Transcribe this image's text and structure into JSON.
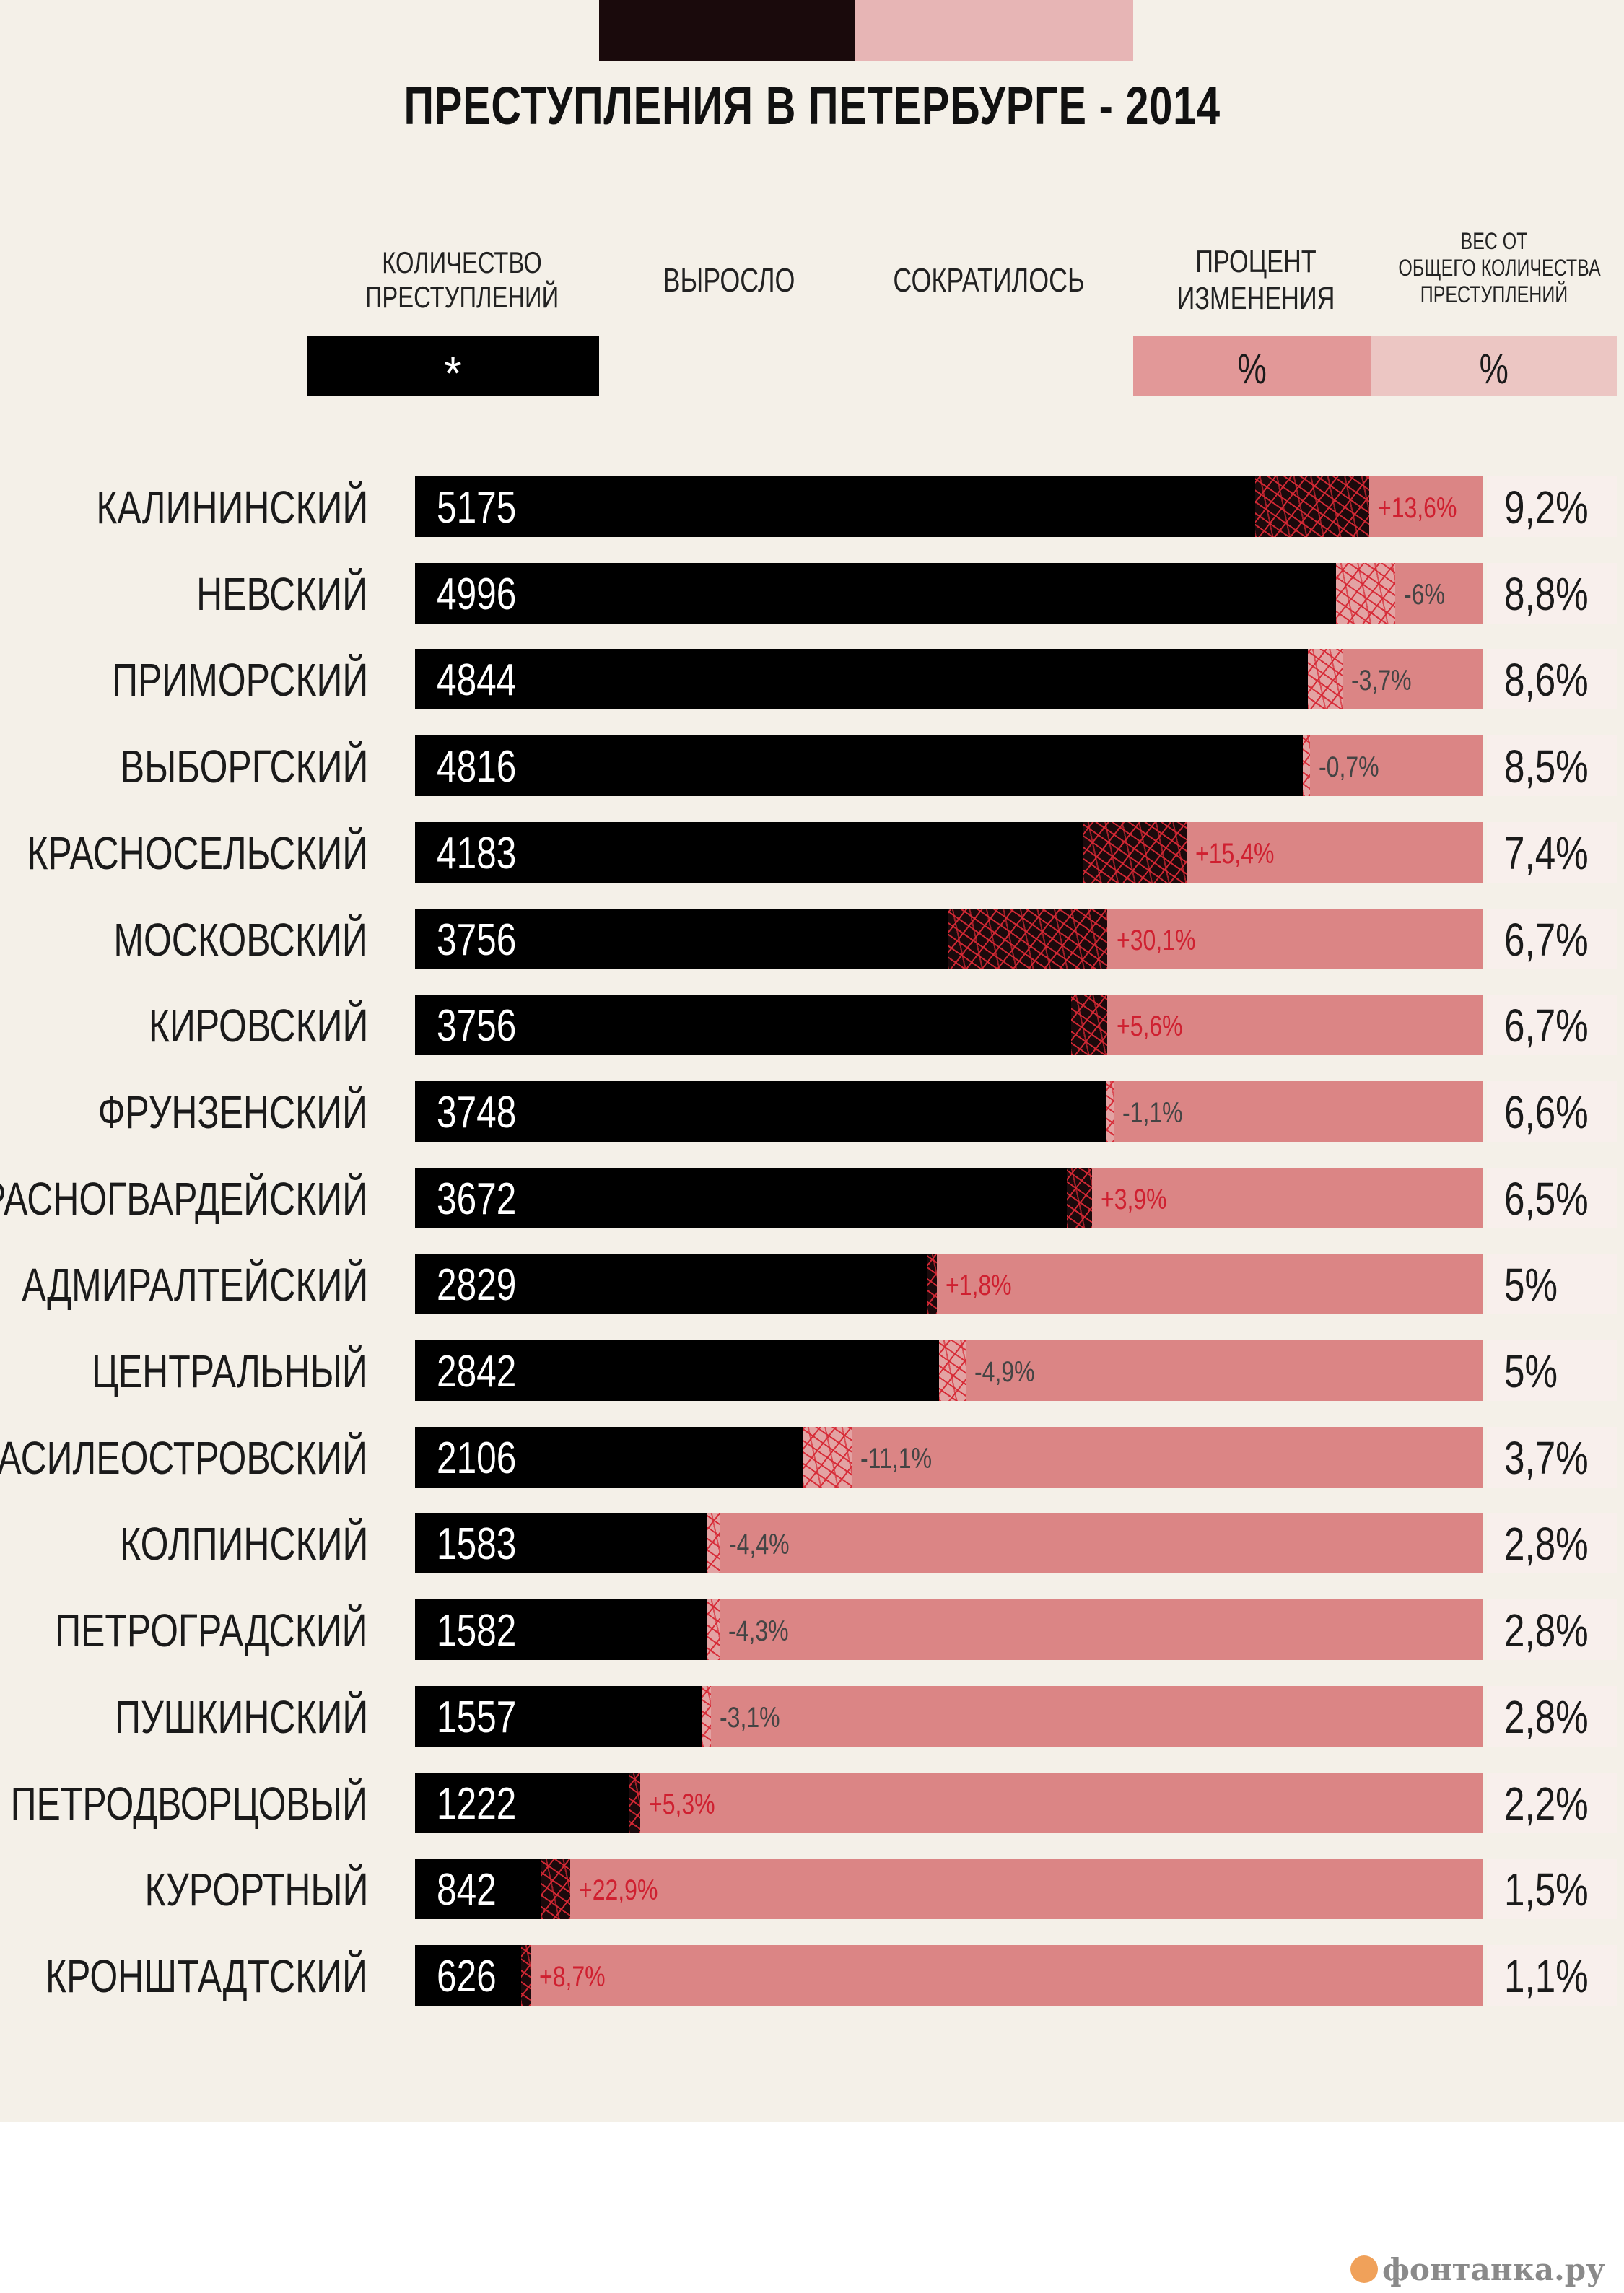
{
  "title": "ПРЕСТУПЛЕНИЯ В ПЕТЕРБУРГЕ - 2014",
  "legend": {
    "count_label": [
      "КОЛИЧЕСТВО",
      "ПРЕСТУПЛЕНИЙ"
    ],
    "grew_label": "ВЫРОСЛО",
    "fell_label": "СОКРАТИЛОСЬ",
    "pct_label": [
      "ПРОЦЕНТ",
      "ИЗМЕНЕНИЯ"
    ],
    "weight_label": [
      "ВЕС ОТ",
      "ОБЩЕГО КОЛИЧЕСТВА",
      "ПРЕСТУПЛЕНИЙ"
    ],
    "count_symbol": "*",
    "pct_symbol": "%",
    "weight_symbol": "%"
  },
  "colors": {
    "count_bar": "#000000",
    "change_track": "#db8585",
    "hatch_red": "#d62834",
    "increase_text": "#cf2030",
    "decrease_text": "#444444"
  },
  "chart_data": {
    "type": "bar",
    "orientation": "horizontal",
    "categories": [
      "КАЛИНИНСКИЙ",
      "НЕВСКИЙ",
      "ПРИМОРСКИЙ",
      "ВЫБОРГСКИЙ",
      "КРАСНОСЕЛЬСКИЙ",
      "МОСКОВСКИЙ",
      "КИРОВСКИЙ",
      "ФРУНЗЕНСКИЙ",
      "КРАСНОГВАРДЕЙСКИЙ",
      "АДМИРАЛТЕЙСКИЙ",
      "ЦЕНТРАЛЬНЫЙ",
      "ВАСИЛЕОСТРОВСКИЙ",
      "КОЛПИНСКИЙ",
      "ПЕТРОГРАДСКИЙ",
      "ПУШКИНСКИЙ",
      "ПЕТРОДВОРЦОВЫЙ",
      "КУРОРТНЫЙ",
      "КРОНШТАДТСКИЙ"
    ],
    "crimes": [
      5175,
      4996,
      4844,
      4816,
      4183,
      3756,
      3756,
      3748,
      3672,
      2829,
      2842,
      2106,
      1583,
      1582,
      1557,
      1222,
      842,
      626
    ],
    "change_percent": [
      13.6,
      -6,
      -3.7,
      -0.7,
      15.4,
      30.1,
      5.6,
      -1.1,
      3.9,
      1.8,
      -4.9,
      -11.1,
      -4.4,
      -4.3,
      -3.1,
      5.3,
      22.9,
      8.7
    ],
    "change_labels": [
      "+13,6%",
      "-6%",
      "-3,7%",
      "-0,7%",
      "+15,4%",
      "+30,1%",
      "+5,6%",
      "-1,1%",
      "+3,9%",
      "+1,8%",
      "-4,9%",
      "-11,1%",
      "-4,4%",
      "-4,3%",
      "-3,1%",
      "+5,3%",
      "+22,9%",
      "+8,7%"
    ],
    "weight_labels": [
      "9,2%",
      "8,8%",
      "8,6%",
      "8,5%",
      "7,4%",
      "6,7%",
      "6,7%",
      "6,6%",
      "6,5%",
      "5%",
      "5%",
      "3,7%",
      "2,8%",
      "2,8%",
      "2,8%",
      "2,2%",
      "1,5%",
      "1,1%"
    ],
    "xlim": [
      0,
      5175
    ],
    "grid": false
  },
  "watermark": "фонтанка.ру"
}
